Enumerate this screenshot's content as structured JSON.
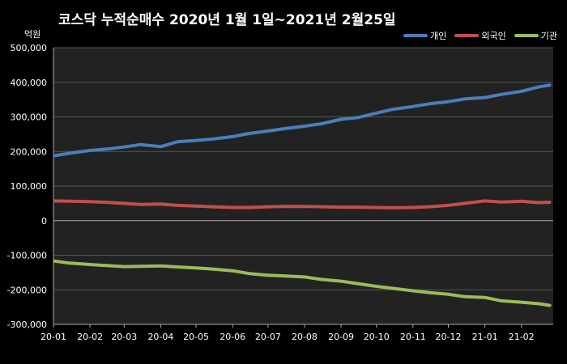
{
  "header": {
    "title": "코스닥 누적순매수 2020년 1월 1일~2021년 2월25일",
    "unit_label": "억원"
  },
  "colors": {
    "background": "#000000",
    "plot_background": "#222222",
    "gridline": "#555555",
    "individual": "#4a7ebb",
    "foreign": "#c0504d",
    "institution": "#9bbb59"
  },
  "chart_data": {
    "type": "line",
    "title": "코스닥 누적순매수 2020년 1월 1일~2021년 2월25일",
    "xlabel": "",
    "ylabel": "억원",
    "ylim": [
      -300000,
      500000
    ],
    "yticks": [
      500000,
      400000,
      300000,
      200000,
      100000,
      0,
      -100000,
      -200000,
      -300000
    ],
    "ytick_labels": [
      "500,000",
      "400,000",
      "300,000",
      "200,000",
      "100,000",
      "0",
      "-100,000",
      "-200,000",
      "-300,000"
    ],
    "x_tick_labels": [
      "20-01",
      "20-02",
      "20-03",
      "20-04",
      "20-05",
      "20-06",
      "20-07",
      "20-08",
      "20-09",
      "20-10",
      "20-11",
      "20-12",
      "21-01",
      "21-02"
    ],
    "grid": true,
    "legend_position": "top-right",
    "x": [
      "2020-01-02",
      "2020-01-15",
      "2020-02-01",
      "2020-02-15",
      "2020-03-01",
      "2020-03-15",
      "2020-04-01",
      "2020-04-15",
      "2020-05-01",
      "2020-05-15",
      "2020-06-01",
      "2020-06-15",
      "2020-07-01",
      "2020-07-15",
      "2020-08-01",
      "2020-08-15",
      "2020-09-01",
      "2020-09-15",
      "2020-10-01",
      "2020-10-15",
      "2020-11-01",
      "2020-11-15",
      "2020-12-01",
      "2020-12-15",
      "2021-01-01",
      "2021-01-15",
      "2021-02-01",
      "2021-02-15",
      "2021-02-25"
    ],
    "series": [
      {
        "name": "개인",
        "color": "#4a7ebb",
        "values": [
          188000,
          195000,
          203000,
          207000,
          213000,
          220000,
          214000,
          228000,
          232000,
          236000,
          243000,
          252000,
          259000,
          266000,
          273000,
          280000,
          293000,
          298000,
          311000,
          322000,
          330000,
          338000,
          344000,
          352000,
          356000,
          365000,
          374000,
          386000,
          392000
        ]
      },
      {
        "name": "외국인",
        "color": "#c0504d",
        "values": [
          57000,
          56000,
          55000,
          53000,
          50000,
          47000,
          48000,
          44000,
          42000,
          40000,
          38000,
          38000,
          40000,
          41000,
          41000,
          40000,
          39000,
          39000,
          38000,
          37000,
          38000,
          40000,
          44000,
          50000,
          57000,
          54000,
          56000,
          52000,
          53000
        ]
      },
      {
        "name": "기관",
        "color": "#9bbb59",
        "values": [
          -117000,
          -123000,
          -127000,
          -130000,
          -133000,
          -132000,
          -131000,
          -134000,
          -137000,
          -140000,
          -145000,
          -153000,
          -158000,
          -160000,
          -163000,
          -170000,
          -175000,
          -182000,
          -190000,
          -196000,
          -203000,
          -208000,
          -213000,
          -220000,
          -222000,
          -232000,
          -236000,
          -240000,
          -245000
        ]
      }
    ]
  }
}
